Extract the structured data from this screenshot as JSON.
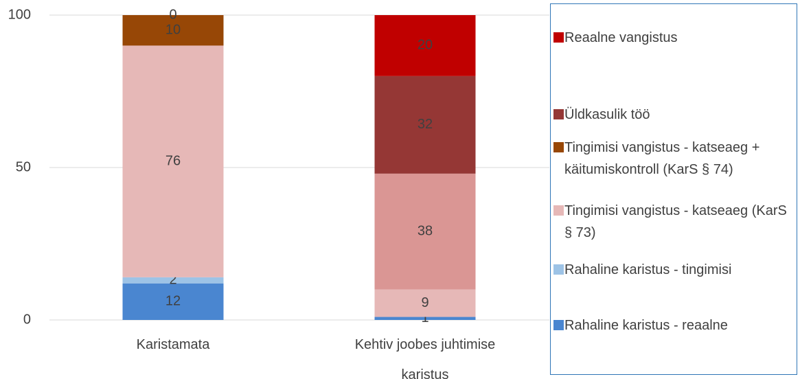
{
  "chart_data": {
    "type": "stacked_bar",
    "categories": [
      "Karistamata",
      "Kehtiv joobes juhtimise karistus"
    ],
    "series": [
      {
        "name": "Rahaline karistus - reaalne",
        "color": "#4a86d0",
        "values": [
          12,
          1
        ]
      },
      {
        "name": "Rahaline karistus - tingimisi",
        "color": "#9dc3e6",
        "values": [
          2,
          null
        ]
      },
      {
        "name": "Tingimisi vangistus - katseaeg (KarS § 73)",
        "color": "#e6b8b7",
        "values": [
          76,
          9
        ]
      },
      {
        "name": "Tingimisi vangistus - katseaeg + käitumiskontroll (KarS § 74)",
        "color": "#974706",
        "colors": [
          "#974706",
          "#da9694"
        ],
        "values": [
          10,
          38
        ]
      },
      {
        "name": "Üldkasulik töö",
        "color": "#953735",
        "values": [
          0,
          32
        ]
      },
      {
        "name": "Reaalne vangistus",
        "color": "#c00000",
        "values": [
          null,
          20
        ]
      }
    ],
    "ylim": [
      0,
      100
    ],
    "yticks": [
      0,
      50,
      100
    ],
    "grid": true
  }
}
